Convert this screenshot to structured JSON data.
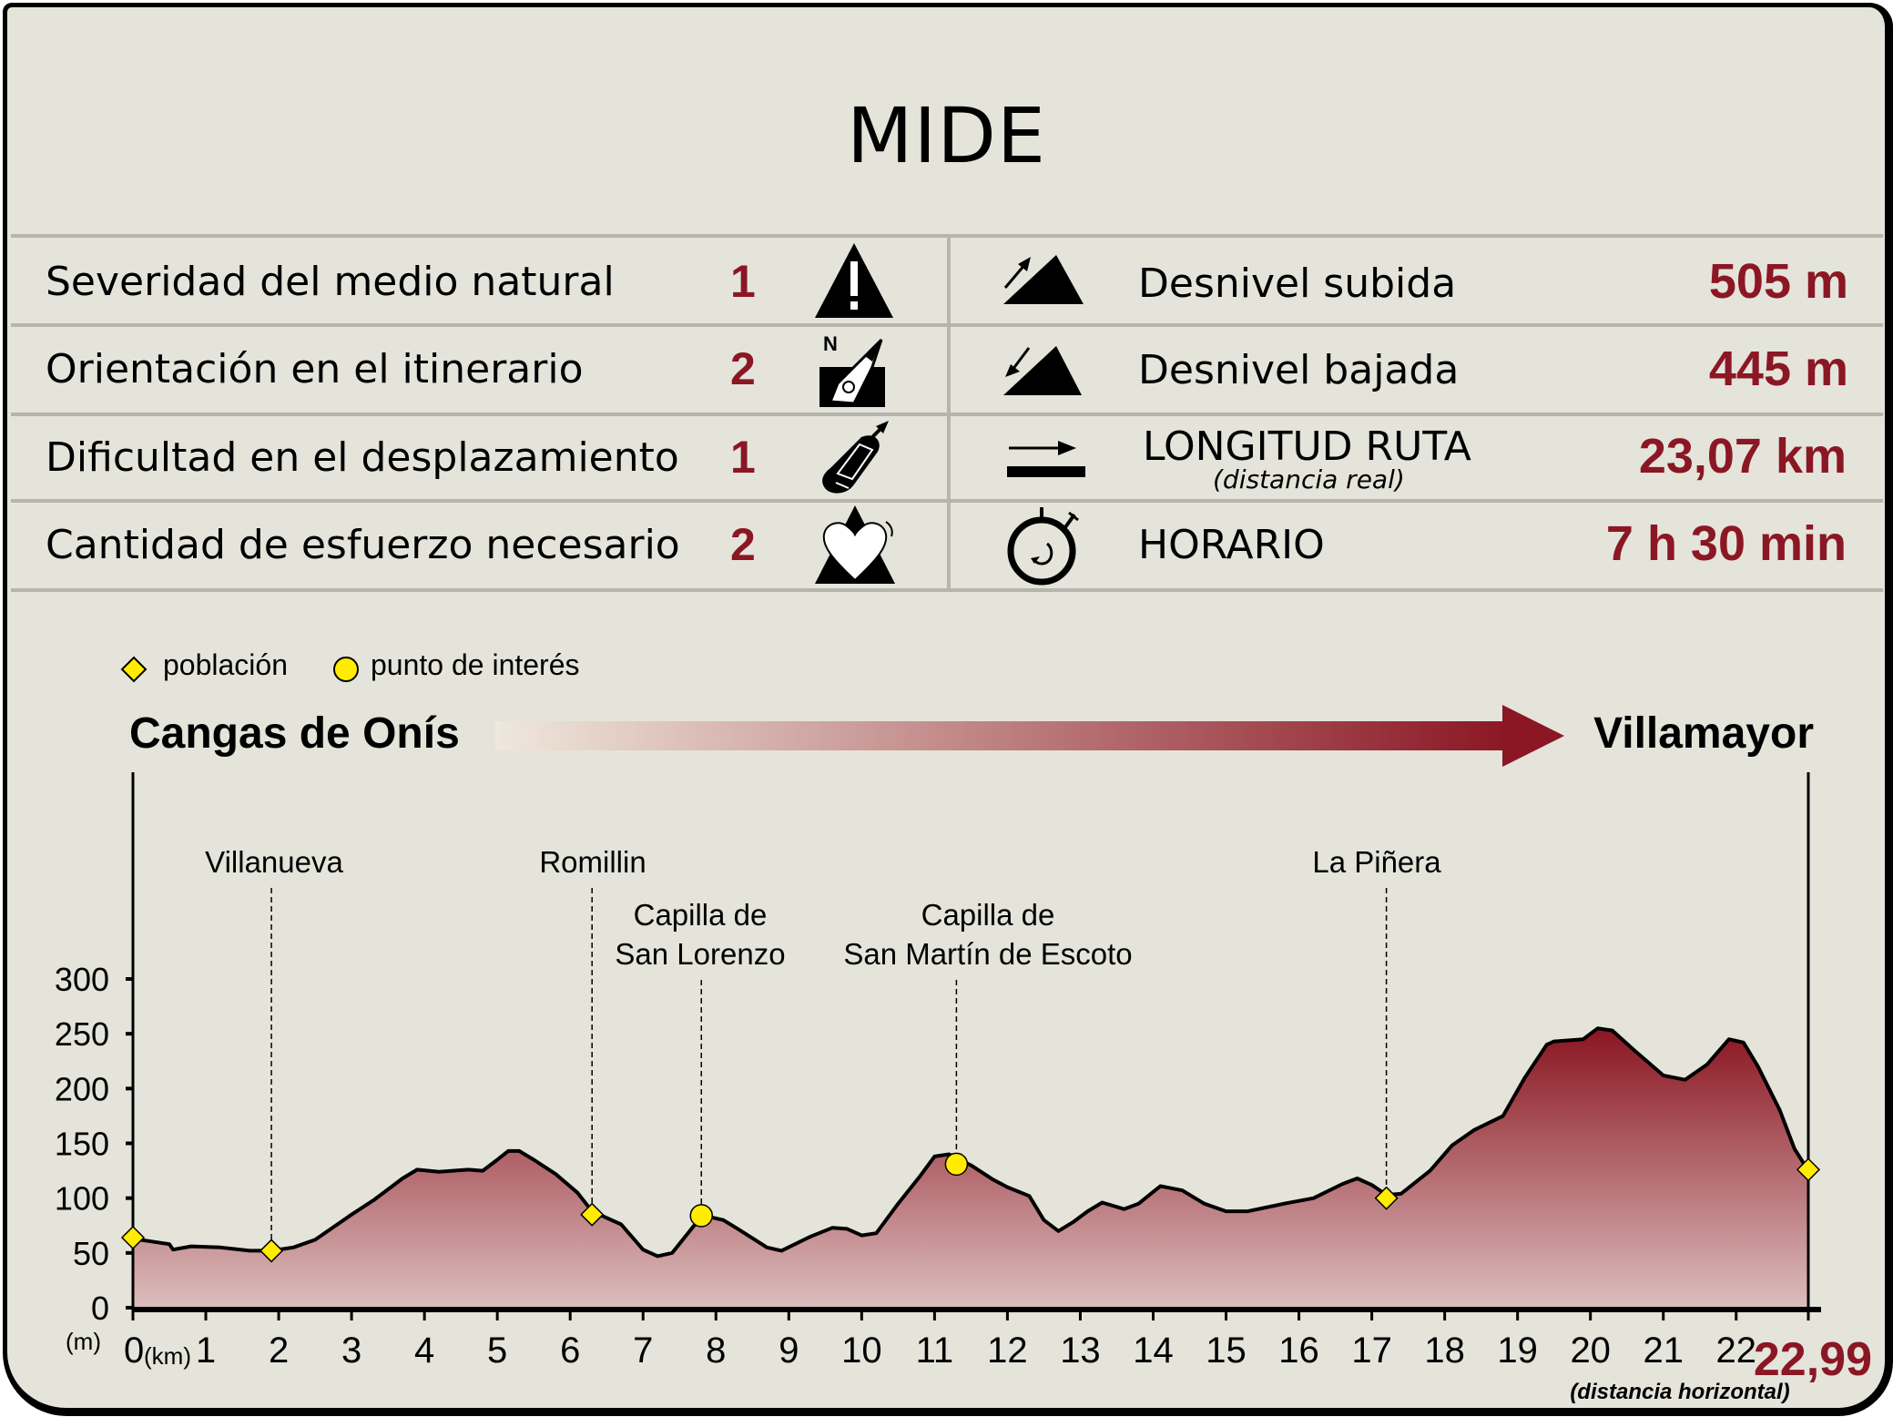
{
  "title": "MIDE",
  "mide_rows": [
    {
      "label": "Severidad del medio natural",
      "score": "1",
      "icon": "warning-mountain-icon"
    },
    {
      "label": "Orientación en el itinerario",
      "score": "2",
      "icon": "compass-orientation-icon"
    },
    {
      "label": "Dificultad en el desplazamiento",
      "score": "1",
      "icon": "boot-sole-icon"
    },
    {
      "label": "Cantidad de esfuerzo necesario",
      "score": "2",
      "icon": "heart-mountain-icon"
    }
  ],
  "route_stats": [
    {
      "label": "Desnivel subida",
      "value": "505 m",
      "icon": "ascent-mountain-icon"
    },
    {
      "label": "Desnivel bajada",
      "value": "445 m",
      "icon": "descent-mountain-icon"
    },
    {
      "label": "LONGITUD RUTA",
      "sublabel": "(distancia real)",
      "value": "23,07 km",
      "icon": "distance-arrow-icon"
    },
    {
      "label": "HORARIO",
      "value": "7 h 30 min",
      "icon": "stopwatch-icon"
    }
  ],
  "legend": {
    "town": "población",
    "poi": "punto de interés"
  },
  "start": "Cangas de Onís",
  "end": "Villamayor",
  "colors": {
    "accent": "#8b1724",
    "marker": "#ffec00",
    "fill_top": "#8a1520",
    "fill_bottom": "#dcbdbd",
    "background": "#e4e4db"
  },
  "chart_data": {
    "type": "area",
    "xlabel": "(km)",
    "ylabel": "(m)",
    "x_end_label": "22,99",
    "x_end_sublabel": "(distancia horizontal)",
    "xlim": [
      0,
      22.99
    ],
    "ylim": [
      0,
      300
    ],
    "xticks": [
      0,
      1,
      2,
      3,
      4,
      5,
      6,
      7,
      8,
      9,
      10,
      11,
      12,
      13,
      14,
      15,
      16,
      17,
      18,
      19,
      20,
      21,
      22
    ],
    "yticks": [
      0,
      50,
      100,
      150,
      200,
      250,
      300
    ],
    "grid": false,
    "profile": [
      [
        0,
        63
      ],
      [
        0.3,
        60
      ],
      [
        0.5,
        58
      ],
      [
        0.55,
        53
      ],
      [
        0.8,
        56
      ],
      [
        1.2,
        55
      ],
      [
        1.6,
        52
      ],
      [
        1.9,
        52
      ],
      [
        2.2,
        55
      ],
      [
        2.5,
        62
      ],
      [
        3,
        85
      ],
      [
        3.3,
        98
      ],
      [
        3.7,
        118
      ],
      [
        3.9,
        126
      ],
      [
        4.2,
        124
      ],
      [
        4.6,
        126
      ],
      [
        4.8,
        125
      ],
      [
        5.0,
        135
      ],
      [
        5.15,
        143
      ],
      [
        5.3,
        143
      ],
      [
        5.5,
        135
      ],
      [
        5.8,
        122
      ],
      [
        6.1,
        105
      ],
      [
        6.3,
        88
      ],
      [
        6.5,
        82
      ],
      [
        6.7,
        76
      ],
      [
        7.0,
        53
      ],
      [
        7.2,
        47
      ],
      [
        7.4,
        50
      ],
      [
        7.7,
        75
      ],
      [
        7.9,
        83
      ],
      [
        8.1,
        80
      ],
      [
        8.3,
        72
      ],
      [
        8.7,
        55
      ],
      [
        8.9,
        52
      ],
      [
        9.3,
        65
      ],
      [
        9.6,
        73
      ],
      [
        9.8,
        72
      ],
      [
        10.0,
        66
      ],
      [
        10.2,
        68
      ],
      [
        10.5,
        95
      ],
      [
        10.8,
        120
      ],
      [
        11.0,
        138
      ],
      [
        11.2,
        140
      ],
      [
        11.5,
        130
      ],
      [
        11.8,
        117
      ],
      [
        12.0,
        110
      ],
      [
        12.3,
        102
      ],
      [
        12.5,
        80
      ],
      [
        12.7,
        70
      ],
      [
        12.9,
        78
      ],
      [
        13.1,
        88
      ],
      [
        13.3,
        96
      ],
      [
        13.6,
        90
      ],
      [
        13.8,
        95
      ],
      [
        14.1,
        111
      ],
      [
        14.4,
        107
      ],
      [
        14.7,
        95
      ],
      [
        15.0,
        88
      ],
      [
        15.3,
        88
      ],
      [
        15.8,
        95
      ],
      [
        16.2,
        100
      ],
      [
        16.6,
        113
      ],
      [
        16.8,
        118
      ],
      [
        17.0,
        112
      ],
      [
        17.2,
        103
      ],
      [
        17.4,
        104
      ],
      [
        17.8,
        125
      ],
      [
        18.1,
        148
      ],
      [
        18.4,
        162
      ],
      [
        18.8,
        175
      ],
      [
        19.1,
        210
      ],
      [
        19.4,
        240
      ],
      [
        19.5,
        243
      ],
      [
        19.9,
        245
      ],
      [
        20.1,
        255
      ],
      [
        20.3,
        253
      ],
      [
        20.6,
        235
      ],
      [
        21.0,
        212
      ],
      [
        21.3,
        208
      ],
      [
        21.6,
        222
      ],
      [
        21.9,
        245
      ],
      [
        22.1,
        242
      ],
      [
        22.3,
        220
      ],
      [
        22.6,
        180
      ],
      [
        22.8,
        145
      ],
      [
        22.99,
        125
      ]
    ],
    "towns": [
      {
        "name": "",
        "km": 0,
        "m": 64
      },
      {
        "name": "Villanueva",
        "km": 1.9,
        "m": 52
      },
      {
        "name": "Romillin",
        "km": 6.3,
        "m": 85
      },
      {
        "name": "La Piñera",
        "km": 17.2,
        "m": 100
      },
      {
        "name": "",
        "km": 22.99,
        "m": 126
      }
    ],
    "points_of_interest": [
      {
        "name_line1": "Capilla de",
        "name_line2": "San Lorenzo",
        "km": 7.8,
        "m": 84
      },
      {
        "name_line1": "Capilla de",
        "name_line2": "San Martín de Escoto",
        "km": 11.3,
        "m": 131
      }
    ]
  }
}
